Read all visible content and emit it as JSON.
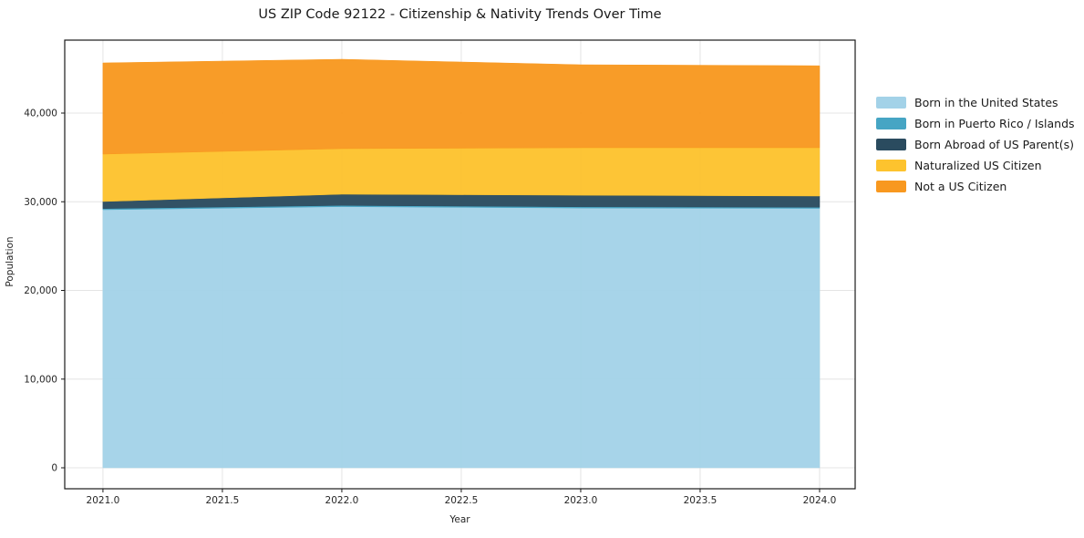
{
  "chart_data": {
    "type": "area",
    "stacked": true,
    "title": "US ZIP Code 92122 - Citizenship & Nativity Trends Over Time",
    "xlabel": "Year",
    "ylabel": "Population",
    "x": [
      2021,
      2022,
      2023,
      2024
    ],
    "series": [
      {
        "name": "Born in the United States",
        "color": "#a3d2e8",
        "values": [
          29100,
          29450,
          29300,
          29250
        ]
      },
      {
        "name": "Born in Puerto Rico / Islands",
        "color": "#46a5c4",
        "values": [
          130,
          130,
          130,
          130
        ]
      },
      {
        "name": "Born Abroad of US Parent(s)",
        "color": "#2a4b5f",
        "values": [
          800,
          1270,
          1310,
          1260
        ]
      },
      {
        "name": "Naturalized US Citizen",
        "color": "#fdc32e",
        "values": [
          5340,
          5140,
          5350,
          5450
        ]
      },
      {
        "name": "Not a US Citizen",
        "color": "#f8981f",
        "values": [
          10290,
          10080,
          9360,
          9250
        ]
      }
    ],
    "x_ticks": [
      {
        "value": 2021.0,
        "label": "2021.0"
      },
      {
        "value": 2021.5,
        "label": "2021.5"
      },
      {
        "value": 2022.0,
        "label": "2022.0"
      },
      {
        "value": 2022.5,
        "label": "2022.5"
      },
      {
        "value": 2023.0,
        "label": "2023.0"
      },
      {
        "value": 2023.5,
        "label": "2023.5"
      },
      {
        "value": 2024.0,
        "label": "2024.0"
      }
    ],
    "y_ticks": [
      {
        "value": 0,
        "label": "0"
      },
      {
        "value": 10000,
        "label": "10,000"
      },
      {
        "value": 20000,
        "label": "20,000"
      },
      {
        "value": 30000,
        "label": "30,000"
      },
      {
        "value": 40000,
        "label": "40,000"
      }
    ],
    "xlim": [
      2020.84,
      2024.149
    ],
    "ylim": [
      -2365,
      48227
    ],
    "grid": true,
    "legend_position": "right",
    "colors": {
      "grid": "#e4e4e4",
      "frame": "#1a1a1a",
      "tick_text": "#262626"
    }
  }
}
